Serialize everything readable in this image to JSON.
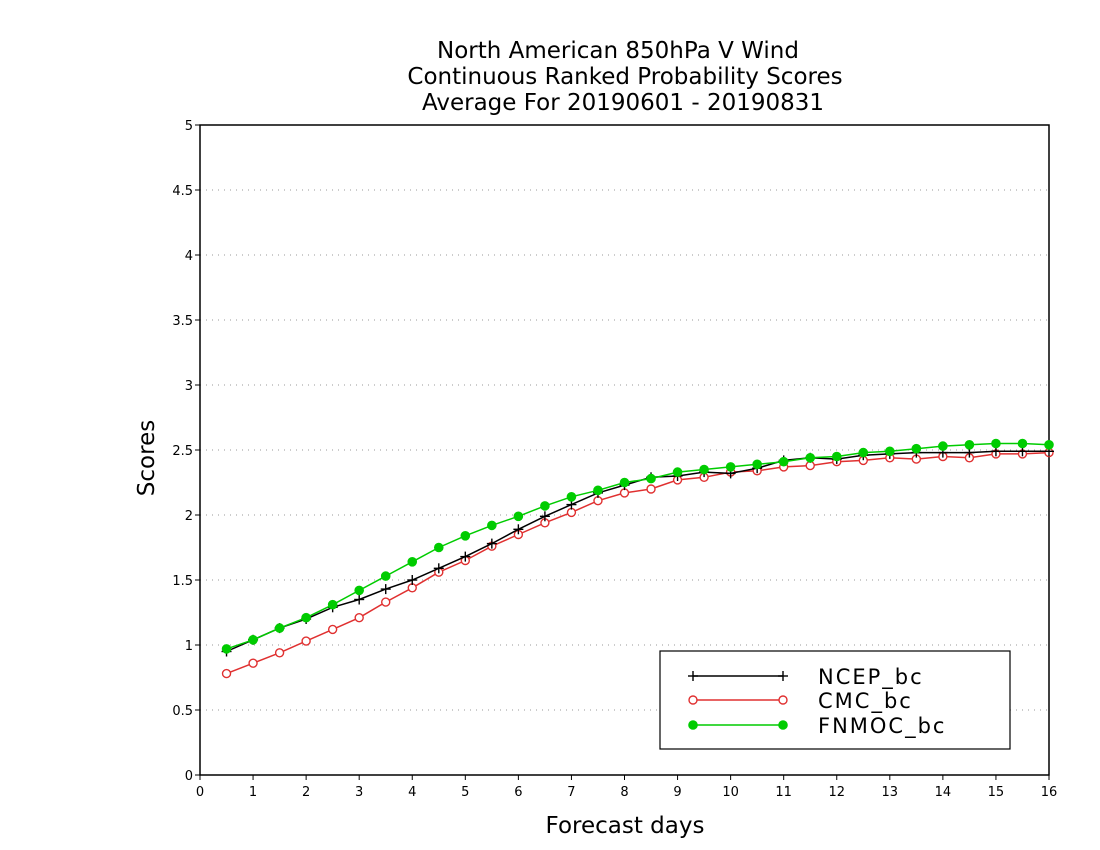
{
  "chart_data": {
    "type": "line",
    "title": [
      "North American 850hPa V Wind",
      "Continuous Ranked Probability Scores",
      "Average For 20190601 - 20190831"
    ],
    "xlabel": "Forecast days",
    "ylabel": "Scores",
    "xlim": [
      0,
      16
    ],
    "ylim": [
      0,
      5
    ],
    "xticks": [
      "0",
      "1",
      "2",
      "3",
      "4",
      "5",
      "6",
      "7",
      "8",
      "9",
      "10",
      "11",
      "12",
      "13",
      "14",
      "15",
      "16"
    ],
    "yticks": [
      "0",
      "0.5",
      "1",
      "1.5",
      "2",
      "2.5",
      "3",
      "3.5",
      "4",
      "4.5",
      "5"
    ],
    "grid": "dotted horizontal",
    "legend_position": "bottom-right",
    "x": [
      0.5,
      1,
      1.5,
      2,
      2.5,
      3,
      3.5,
      4,
      4.5,
      5,
      5.5,
      6,
      6.5,
      7,
      7.5,
      8,
      8.5,
      9,
      9.5,
      10,
      10.5,
      11,
      11.5,
      12,
      12.5,
      13,
      13.5,
      14,
      14.5,
      15,
      15.5,
      16
    ],
    "series": [
      {
        "name": "NCEP_bc",
        "color": "#000000",
        "marker": "plus",
        "values": [
          0.95,
          1.04,
          1.13,
          1.2,
          1.29,
          1.35,
          1.43,
          1.5,
          1.59,
          1.68,
          1.78,
          1.89,
          1.99,
          2.08,
          2.17,
          2.23,
          2.29,
          2.3,
          2.33,
          2.32,
          2.36,
          2.42,
          2.44,
          2.43,
          2.46,
          2.47,
          2.48,
          2.48,
          2.48,
          2.49,
          2.49,
          2.49
        ]
      },
      {
        "name": "CMC_bc",
        "color": "#e03030",
        "marker": "open-circle",
        "values": [
          0.78,
          0.86,
          0.94,
          1.03,
          1.12,
          1.21,
          1.33,
          1.44,
          1.56,
          1.65,
          1.76,
          1.85,
          1.94,
          2.02,
          2.11,
          2.17,
          2.2,
          2.27,
          2.29,
          2.33,
          2.34,
          2.37,
          2.38,
          2.41,
          2.42,
          2.44,
          2.43,
          2.45,
          2.44,
          2.47,
          2.47,
          2.48
        ]
      },
      {
        "name": "FNMOC_bc",
        "color": "#00cc00",
        "marker": "filled-circle",
        "values": [
          0.97,
          1.04,
          1.13,
          1.21,
          1.31,
          1.42,
          1.53,
          1.64,
          1.75,
          1.84,
          1.92,
          1.99,
          2.07,
          2.14,
          2.19,
          2.25,
          2.28,
          2.33,
          2.35,
          2.37,
          2.39,
          2.41,
          2.44,
          2.45,
          2.48,
          2.49,
          2.51,
          2.53,
          2.54,
          2.55,
          2.55,
          2.54
        ]
      }
    ]
  }
}
